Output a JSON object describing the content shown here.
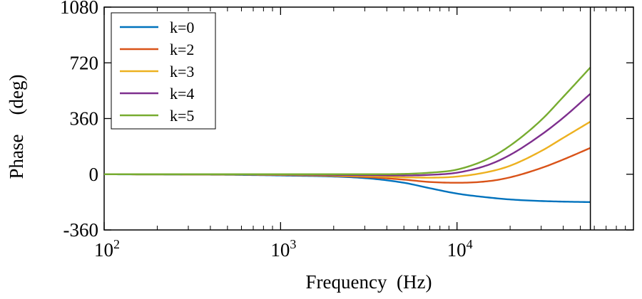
{
  "chart_data": {
    "type": "line",
    "title": "",
    "xlabel": "Frequency  (Hz)",
    "ylabel": "Phase    (deg)",
    "xscale": "log",
    "xlim": [
      100,
      100000
    ],
    "ylim": [
      -360,
      1080
    ],
    "xticks": [
      100,
      1000,
      10000
    ],
    "xtick_labels": [
      {
        "base": "10",
        "exp": "2"
      },
      {
        "base": "10",
        "exp": "3"
      },
      {
        "base": "10",
        "exp": "4"
      }
    ],
    "yticks": [
      -360,
      0,
      360,
      720,
      1080
    ],
    "ytick_labels": [
      "-360",
      "0",
      "360",
      "720",
      "1080"
    ],
    "vertical_line_x": 57000,
    "grid": false,
    "legend_position": "top-left",
    "x": [
      100,
      1000,
      3000,
      5000,
      7000,
      10000,
      15000,
      20000,
      30000,
      40000,
      57000
    ],
    "series": [
      {
        "name": "k=0",
        "color": "#0072BD",
        "values": [
          0,
          -8,
          -25,
          -55,
          -90,
          -125,
          -150,
          -163,
          -173,
          -177,
          -180
        ]
      },
      {
        "name": "k=2",
        "color": "#D95319",
        "values": [
          0,
          -5,
          -18,
          -35,
          -50,
          -55,
          -45,
          -20,
          40,
          95,
          170
        ]
      },
      {
        "name": "k=3",
        "color": "#EDB120",
        "values": [
          0,
          -4,
          -12,
          -20,
          -22,
          -15,
          15,
          55,
          150,
          235,
          340
        ]
      },
      {
        "name": "k=4",
        "color": "#7E2F8E",
        "values": [
          0,
          -2,
          -6,
          -8,
          -4,
          10,
          60,
          125,
          255,
          365,
          520
        ]
      },
      {
        "name": "k=5",
        "color": "#77AC30",
        "values": [
          0,
          0,
          0,
          2,
          10,
          30,
          100,
          185,
          350,
          500,
          690
        ]
      }
    ]
  }
}
